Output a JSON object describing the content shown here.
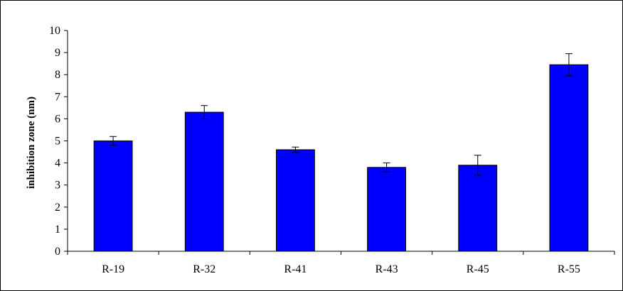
{
  "chart_data": {
    "type": "bar",
    "title": "",
    "xlabel": "",
    "ylabel": "inhibition zone (nm)",
    "categories": [
      "R-19",
      "R-32",
      "R-41",
      "R-43",
      "R-45",
      "R-55"
    ],
    "values": [
      5.0,
      6.3,
      4.6,
      3.8,
      3.9,
      8.45
    ],
    "error": [
      0.2,
      0.3,
      0.12,
      0.2,
      0.45,
      0.5
    ],
    "ylim": [
      0,
      10
    ],
    "yticks": [
      "0",
      "1",
      "2",
      "3",
      "4",
      "5",
      "6",
      "7",
      "8",
      "9",
      "10"
    ],
    "grid": false,
    "legend": "none",
    "colors": {
      "bar_fill": "#0000FF",
      "bar_stroke": "#000000",
      "axis": "#000000"
    }
  }
}
